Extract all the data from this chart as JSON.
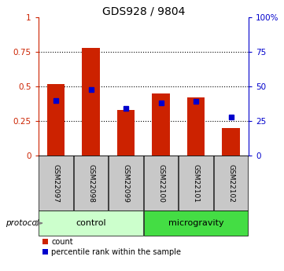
{
  "title": "GDS928 / 9804",
  "samples": [
    "GSM22097",
    "GSM22098",
    "GSM22099",
    "GSM22100",
    "GSM22101",
    "GSM22102"
  ],
  "red_values": [
    0.52,
    0.78,
    0.33,
    0.45,
    0.42,
    0.2
  ],
  "blue_values": [
    0.4,
    0.48,
    0.34,
    0.38,
    0.39,
    0.28
  ],
  "control_indices": [
    0,
    1,
    2
  ],
  "microgravity_indices": [
    3,
    4,
    5
  ],
  "control_label": "control",
  "microgravity_label": "microgravity",
  "protocol_label": "protocol",
  "left_yticks": [
    0,
    0.25,
    0.5,
    0.75,
    1.0
  ],
  "left_ytick_labels": [
    "0",
    "0.25",
    "0.5",
    "0.75",
    "1"
  ],
  "right_yticks": [
    0,
    25,
    50,
    75,
    100
  ],
  "right_ytick_labels": [
    "0",
    "25",
    "50",
    "75",
    "100%"
  ],
  "ylim": [
    0,
    1.0
  ],
  "bar_width": 0.5,
  "bar_color_red": "#cc2200",
  "bar_color_blue": "#0000cc",
  "control_bg": "#ccffcc",
  "microgravity_bg": "#44dd44",
  "sample_bg": "#c8c8c8",
  "legend_count": "count",
  "legend_percentile": "percentile rank within the sample"
}
